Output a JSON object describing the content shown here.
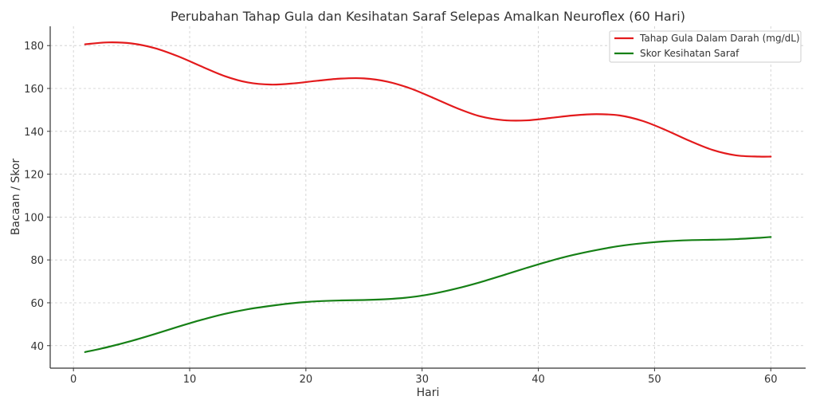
{
  "chart_data": {
    "type": "line",
    "title": "Perubahan Tahap Gula dan Kesihatan Saraf Selepas Amalkan Neuroflex (60 Hari)",
    "xlabel": "Hari",
    "ylabel": "Bacaan / Skor",
    "xlim": [
      -2,
      63
    ],
    "ylim": [
      29.5,
      189
    ],
    "xticks": [
      0,
      10,
      20,
      30,
      40,
      50,
      60
    ],
    "yticks": [
      40,
      60,
      80,
      100,
      120,
      140,
      160,
      180
    ],
    "grid": true,
    "legend_position": "top-right",
    "x": [
      1,
      3,
      5,
      7,
      9,
      11,
      13,
      15,
      17,
      19,
      21,
      23,
      25,
      27,
      29,
      31,
      33,
      35,
      37,
      39,
      41,
      43,
      45,
      47,
      49,
      51,
      53,
      55,
      57,
      59,
      60
    ],
    "series": [
      {
        "name": "Tahap Gula Dalam Darah (mg/dL)",
        "color": "#e31a1c",
        "values": [
          180.6,
          181.5,
          181.0,
          178.8,
          175.0,
          170.3,
          165.8,
          162.8,
          161.8,
          162.4,
          163.6,
          164.6,
          164.7,
          163.2,
          160.0,
          155.5,
          150.8,
          147.0,
          145.2,
          145.1,
          146.2,
          147.4,
          148.0,
          147.4,
          144.8,
          140.5,
          135.6,
          131.3,
          128.8,
          128.2,
          128.2
        ]
      },
      {
        "name": "Skor Kesihatan Saraf",
        "color": "#168016",
        "values": [
          37.0,
          39.4,
          42.2,
          45.4,
          48.8,
          52.0,
          54.8,
          57.0,
          58.6,
          59.9,
          60.7,
          61.1,
          61.3,
          61.7,
          62.6,
          64.3,
          66.7,
          69.6,
          72.9,
          76.3,
          79.5,
          82.3,
          84.6,
          86.5,
          87.8,
          88.7,
          89.2,
          89.4,
          89.7,
          90.3,
          90.7
        ]
      }
    ]
  }
}
